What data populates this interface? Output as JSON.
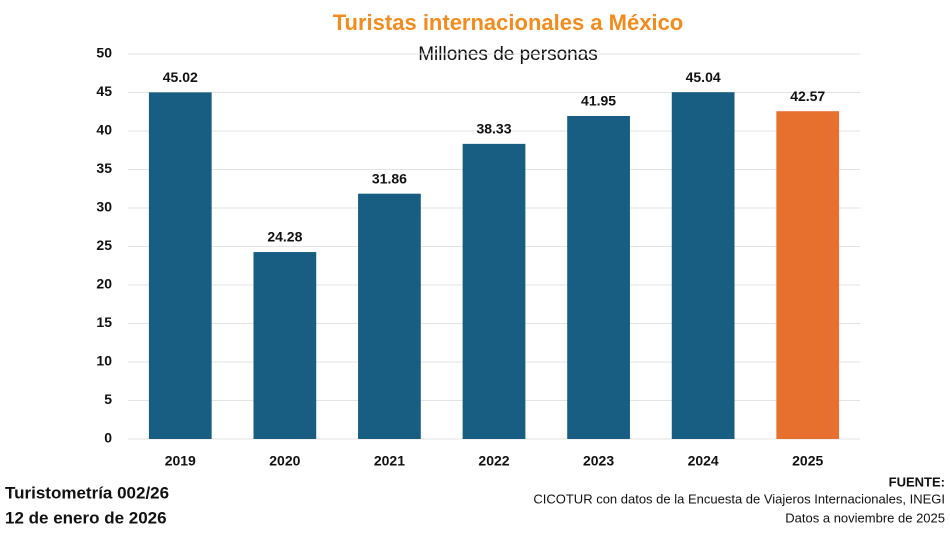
{
  "chart_data": {
    "type": "bar",
    "title": "Turistas internacionales a México",
    "subtitle": "Millones de personas",
    "categories": [
      "2019",
      "2020",
      "2021",
      "2022",
      "2023",
      "2024",
      "2025"
    ],
    "values": [
      45.02,
      24.28,
      31.86,
      38.33,
      41.95,
      45.04,
      42.57
    ],
    "colors": [
      "#175e82",
      "#175e82",
      "#175e82",
      "#175e82",
      "#175e82",
      "#175e82",
      "#e8702f"
    ],
    "ylim": [
      0,
      50
    ],
    "yticks": [
      0,
      5,
      10,
      15,
      20,
      25,
      30,
      35,
      40,
      45,
      50
    ],
    "grid": true
  },
  "footer": {
    "left": [
      "Turistometría 002/26",
      "12 de enero de 2026"
    ],
    "source_title": "FUENTE:",
    "source": [
      "CICOTUR con datos de la Encuesta de Viajeros Internacionales, INEGI",
      "Datos a noviembre de 2025"
    ]
  }
}
